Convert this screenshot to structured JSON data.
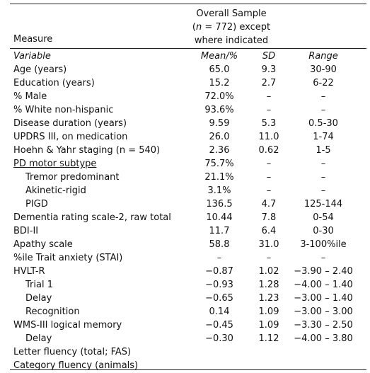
{
  "header": {
    "measure": "Measure",
    "overall_line1": "Overall Sample",
    "overall_line2": "(n = 772) except",
    "overall_line3": "where indicated"
  },
  "rows": [
    {
      "label": "Variable",
      "mean": "Mean/%",
      "sd": "SD",
      "range": "Range"
    },
    {
      "label": "Age (years)",
      "mean": "65.0",
      "sd": "9.3",
      "range": "30-90"
    },
    {
      "label": "Education (years)",
      "mean": "15.2",
      "sd": "2.7",
      "range": "6-22"
    },
    {
      "label": "% Male",
      "mean": "72.0%",
      "sd": "–",
      "range": "–"
    },
    {
      "label": "% White non-hispanic",
      "mean": "93.6%",
      "sd": "–",
      "range": "–"
    },
    {
      "label": "Disease duration (years)",
      "mean": "9.59",
      "sd": "5.3",
      "range": "0.5-30"
    },
    {
      "label": "UPDRS III, on medication",
      "mean": "26.0",
      "sd": "11.0",
      "range": "1-74"
    },
    {
      "label": "Hoehn & Yahr staging (n = 540)",
      "mean": "2.36",
      "sd": "0.62",
      "range": "1-5"
    },
    {
      "label": "PD motor subtype",
      "mean": "75.7%",
      "sd": "–",
      "range": "–"
    },
    {
      "label": "Tremor predominant",
      "mean": "21.1%",
      "sd": "–",
      "range": "–"
    },
    {
      "label": "Akinetic-rigid",
      "mean": "3.1%",
      "sd": "–",
      "range": "–"
    },
    {
      "label": "PIGD",
      "mean": "136.5",
      "sd": "4.7",
      "range": "125-144"
    },
    {
      "label": "Dementia rating scale-2, raw total",
      "mean": "10.44",
      "sd": "7.8",
      "range": "0-54"
    },
    {
      "label": "BDI-II",
      "mean": "11.7",
      "sd": "6.4",
      "range": "0-30"
    },
    {
      "label": "Apathy scale",
      "mean": "58.8",
      "sd": "31.0",
      "range": "3-100%ile"
    },
    {
      "label": "%ile Trait anxiety (STAI)",
      "mean": "–",
      "sd": "–",
      "range": "–"
    },
    {
      "label": "HVLT-R",
      "mean": "−0.87",
      "sd": "1.02",
      "range": "−3.90 – 2.40"
    },
    {
      "label": "Trial 1",
      "mean": "−0.93",
      "sd": "1.28",
      "range": "−4.00 – 1.40"
    },
    {
      "label": "Delay",
      "mean": "−0.65",
      "sd": "1.23",
      "range": "−3.00 – 1.40"
    },
    {
      "label": "Recognition",
      "mean": "0.14",
      "sd": "1.09",
      "range": "−3.00 – 3.00"
    },
    {
      "label": "WMS-III logical memory",
      "mean": "−0.45",
      "sd": "1.09",
      "range": "−3.30 – 2.50"
    },
    {
      "label": "Delay",
      "mean": "−0.30",
      "sd": "1.12",
      "range": "−4.00 – 3.80"
    },
    {
      "label": "Letter fluency (total; FAS)",
      "mean": "",
      "sd": "",
      "range": ""
    },
    {
      "label": "Category fluency (animals)",
      "mean": "",
      "sd": "",
      "range": ""
    }
  ]
}
